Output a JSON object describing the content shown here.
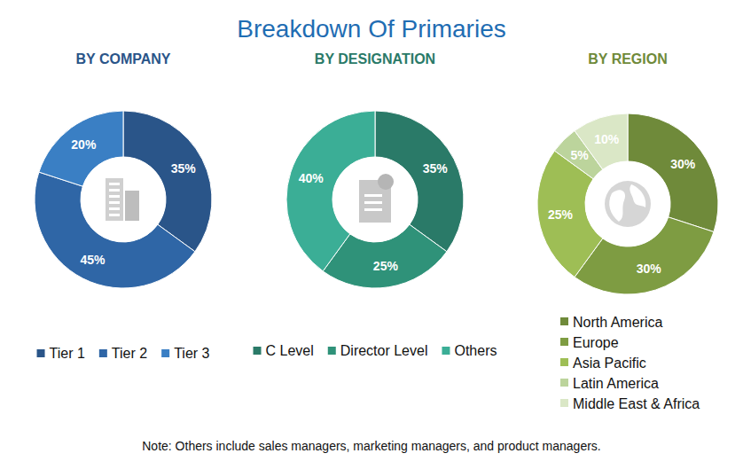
{
  "title": "Breakdown Of Primaries",
  "note": "Note: Others include sales managers, marketing managers, and product managers.",
  "chart_data": [
    {
      "type": "donut",
      "title": "BY COMPANY",
      "categories": [
        "Tier 1",
        "Tier 2",
        "Tier 3"
      ],
      "values": [
        35,
        45,
        20
      ],
      "value_labels": [
        "35%",
        "45%",
        "20%"
      ],
      "colors": [
        "#2a5589",
        "#2f66a6",
        "#3a7fc4"
      ],
      "data_labels": true,
      "legend": "bottom"
    },
    {
      "type": "donut",
      "title": "BY DESIGNATION",
      "categories": [
        "C Level",
        "Director Level",
        "Others"
      ],
      "values": [
        35,
        25,
        40
      ],
      "value_labels": [
        "35%",
        "25%",
        "40%"
      ],
      "colors": [
        "#2a7a68",
        "#2f9279",
        "#3bae96"
      ],
      "data_labels": true,
      "legend": "bottom"
    },
    {
      "type": "donut",
      "title": "BY REGION",
      "categories": [
        "North America",
        "Europe",
        "Asia Pacific",
        "Latin America",
        "Middle East & Africa"
      ],
      "values": [
        30,
        30,
        25,
        5,
        10
      ],
      "value_labels": [
        "30%",
        "30%",
        "25%",
        "5%",
        "10%"
      ],
      "colors": [
        "#6f8a3a",
        "#7e9c42",
        "#9ebe55",
        "#bcd49c",
        "#dae7c6"
      ],
      "data_labels": true,
      "legend": "bottom"
    }
  ]
}
